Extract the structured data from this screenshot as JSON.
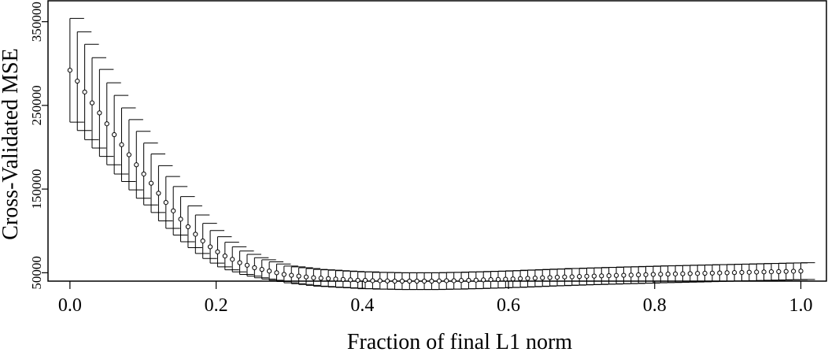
{
  "chart_data": {
    "type": "scatter",
    "title": "",
    "xlabel": "Fraction of final L1 norm",
    "ylabel": "Cross-Validated MSE",
    "xlim": [
      -0.03,
      1.035
    ],
    "ylim": [
      40000,
      375000
    ],
    "xticks": [
      0.0,
      0.2,
      0.4,
      0.6,
      0.8,
      1.0
    ],
    "xtick_labels": [
      "0.0",
      "0.2",
      "0.4",
      "0.6",
      "0.8",
      "1.0"
    ],
    "yticks": [
      50000,
      150000,
      250000,
      350000
    ],
    "ytick_labels": [
      "50000",
      "150000",
      "250000",
      "350000"
    ],
    "grid": false,
    "legend": "none",
    "series": [
      {
        "marker": "open-circle",
        "error_bars": "upper-lower",
        "x": [
          0.0,
          0.0101,
          0.0202,
          0.0303,
          0.0404,
          0.0505,
          0.0606,
          0.0707,
          0.0808,
          0.0909,
          0.101,
          0.1111,
          0.1212,
          0.1313,
          0.1414,
          0.1515,
          0.1616,
          0.1717,
          0.1818,
          0.1919,
          0.202,
          0.2121,
          0.2222,
          0.2323,
          0.2424,
          0.2525,
          0.2626,
          0.2727,
          0.2828,
          0.2929,
          0.303,
          0.3131,
          0.3232,
          0.3333,
          0.3434,
          0.3535,
          0.3636,
          0.3737,
          0.3838,
          0.3939,
          0.404,
          0.4141,
          0.4242,
          0.4343,
          0.4444,
          0.4545,
          0.4646,
          0.4747,
          0.4848,
          0.4949,
          0.5051,
          0.5152,
          0.5253,
          0.5354,
          0.5455,
          0.5556,
          0.5657,
          0.5758,
          0.5859,
          0.596,
          0.6061,
          0.6162,
          0.6263,
          0.6364,
          0.6465,
          0.6566,
          0.6667,
          0.6768,
          0.6869,
          0.697,
          0.7071,
          0.7172,
          0.7273,
          0.7374,
          0.7475,
          0.7576,
          0.7677,
          0.7778,
          0.7879,
          0.798,
          0.8081,
          0.8182,
          0.8283,
          0.8384,
          0.8485,
          0.8586,
          0.8687,
          0.8788,
          0.8889,
          0.899,
          0.9091,
          0.9192,
          0.9293,
          0.9394,
          0.9495,
          0.9596,
          0.9697,
          0.9798,
          0.9899,
          1.0
        ],
        "y": [
          292000,
          279000,
          266000,
          253000,
          241000,
          228000,
          215000,
          203000,
          191000,
          179000,
          168000,
          157000,
          145000,
          134000,
          124000,
          114000,
          105000,
          96000,
          88000,
          81000,
          75000,
          70000,
          66000,
          62000,
          59000,
          56000,
          54000,
          52000,
          50000,
          48000,
          47000,
          46000,
          45000,
          44000,
          43500,
          43000,
          42500,
          42000,
          41500,
          41000,
          41000,
          40500,
          40500,
          40200,
          40000,
          40000,
          40000,
          40000,
          40000,
          40000,
          40200,
          40500,
          40500,
          40800,
          41000,
          41200,
          41500,
          41800,
          42000,
          42300,
          42600,
          43000,
          43300,
          43600,
          44000,
          44300,
          44600,
          45000,
          45200,
          45500,
          45800,
          46000,
          46300,
          46500,
          46800,
          47000,
          47200,
          47500,
          47700,
          48000,
          48200,
          48400,
          48600,
          48800,
          49000,
          49200,
          49400,
          49600,
          49800,
          50000,
          50200,
          50400,
          50600,
          50800,
          51000,
          51200,
          51400,
          51600,
          51800,
          52000
        ],
        "err": [
          62000,
          59000,
          57000,
          54000,
          52000,
          49000,
          47000,
          44000,
          42000,
          40000,
          37000,
          35000,
          33000,
          31000,
          29000,
          27000,
          25000,
          23000,
          21000,
          19500,
          18000,
          16500,
          15000,
          14000,
          13000,
          12000,
          11500,
          11000,
          10500,
          10000,
          10000,
          10000,
          10000,
          10000,
          10000,
          10000,
          10000,
          10000,
          10000,
          10000,
          10000,
          10000,
          10000,
          10000,
          10000,
          10000,
          10000,
          10000,
          10000,
          10000,
          10000,
          10000,
          10000,
          10000,
          10000,
          10000,
          10000,
          10000,
          10000,
          10000,
          10000,
          10000,
          10000,
          10000,
          10000,
          10000,
          10000,
          10000,
          10000,
          10000,
          10000,
          10000,
          10000,
          10000,
          10000,
          10000,
          10000,
          10000,
          10000,
          10000,
          10000,
          10000,
          10000,
          10000,
          10000,
          10000,
          10000,
          10000,
          10000,
          10000,
          10000,
          10000,
          10000,
          10000,
          10000,
          10000,
          10000,
          10000,
          10000,
          10000
        ]
      }
    ]
  }
}
